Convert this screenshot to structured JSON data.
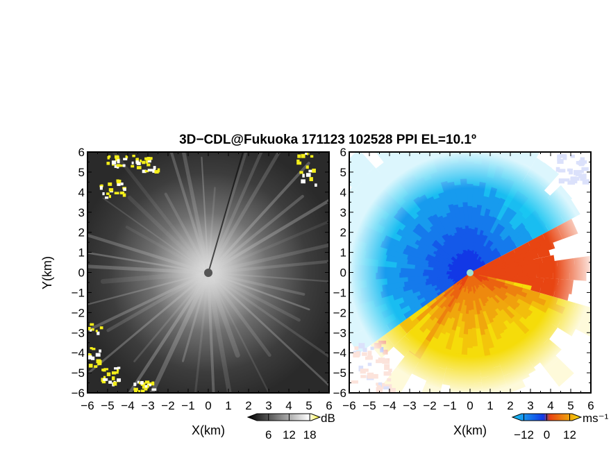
{
  "figure": {
    "title": "3D−CDL@Fukuoka 171123 102528 PPI EL=10.1º"
  },
  "chart_data": [
    {
      "type": "heatmap",
      "quantity": "reflectivity",
      "xlabel": "X(km)",
      "ylabel": "Y(km)",
      "xlim": [
        -6,
        6
      ],
      "ylim": [
        -6,
        6
      ],
      "x_ticks": [
        "−6",
        "−5",
        "−4",
        "−3",
        "−2",
        "−1",
        "0",
        "1",
        "2",
        "3",
        "4",
        "5",
        "6"
      ],
      "y_ticks": [
        "−6",
        "−5",
        "−4",
        "−3",
        "−2",
        "−1",
        "0",
        "1",
        "2",
        "3",
        "4",
        "5",
        "6"
      ],
      "colorbar": {
        "unit": "dB",
        "tick_labels": [
          "6",
          "12",
          "18"
        ],
        "range": [
          0,
          21
        ]
      },
      "colors": {
        "background": "#2b2b2b",
        "rays": "#d0d0d0",
        "high": "#f4ee1a"
      }
    },
    {
      "type": "heatmap",
      "quantity": "doppler velocity",
      "xlabel": "X(km)",
      "xlim": [
        -6,
        6
      ],
      "ylim": [
        -6,
        6
      ],
      "x_ticks": [
        "−6",
        "−5",
        "−4",
        "−3",
        "−2",
        "−1",
        "0",
        "1",
        "2",
        "3",
        "4",
        "5",
        "6"
      ],
      "y_ticks": [
        "−6",
        "−5",
        "−4",
        "−3",
        "−2",
        "−1",
        "0",
        "1",
        "2",
        "3",
        "4",
        "5",
        "6"
      ],
      "colorbar": {
        "unit": "ms⁻¹",
        "tick_labels": [
          "−12",
          "0",
          "12"
        ],
        "range": [
          -18,
          18
        ]
      },
      "colors": {
        "negative_far": "#19c6f2",
        "negative_near": "#1238e6",
        "positive_near": "#e84512",
        "positive_far": "#f5dc0a"
      }
    }
  ]
}
